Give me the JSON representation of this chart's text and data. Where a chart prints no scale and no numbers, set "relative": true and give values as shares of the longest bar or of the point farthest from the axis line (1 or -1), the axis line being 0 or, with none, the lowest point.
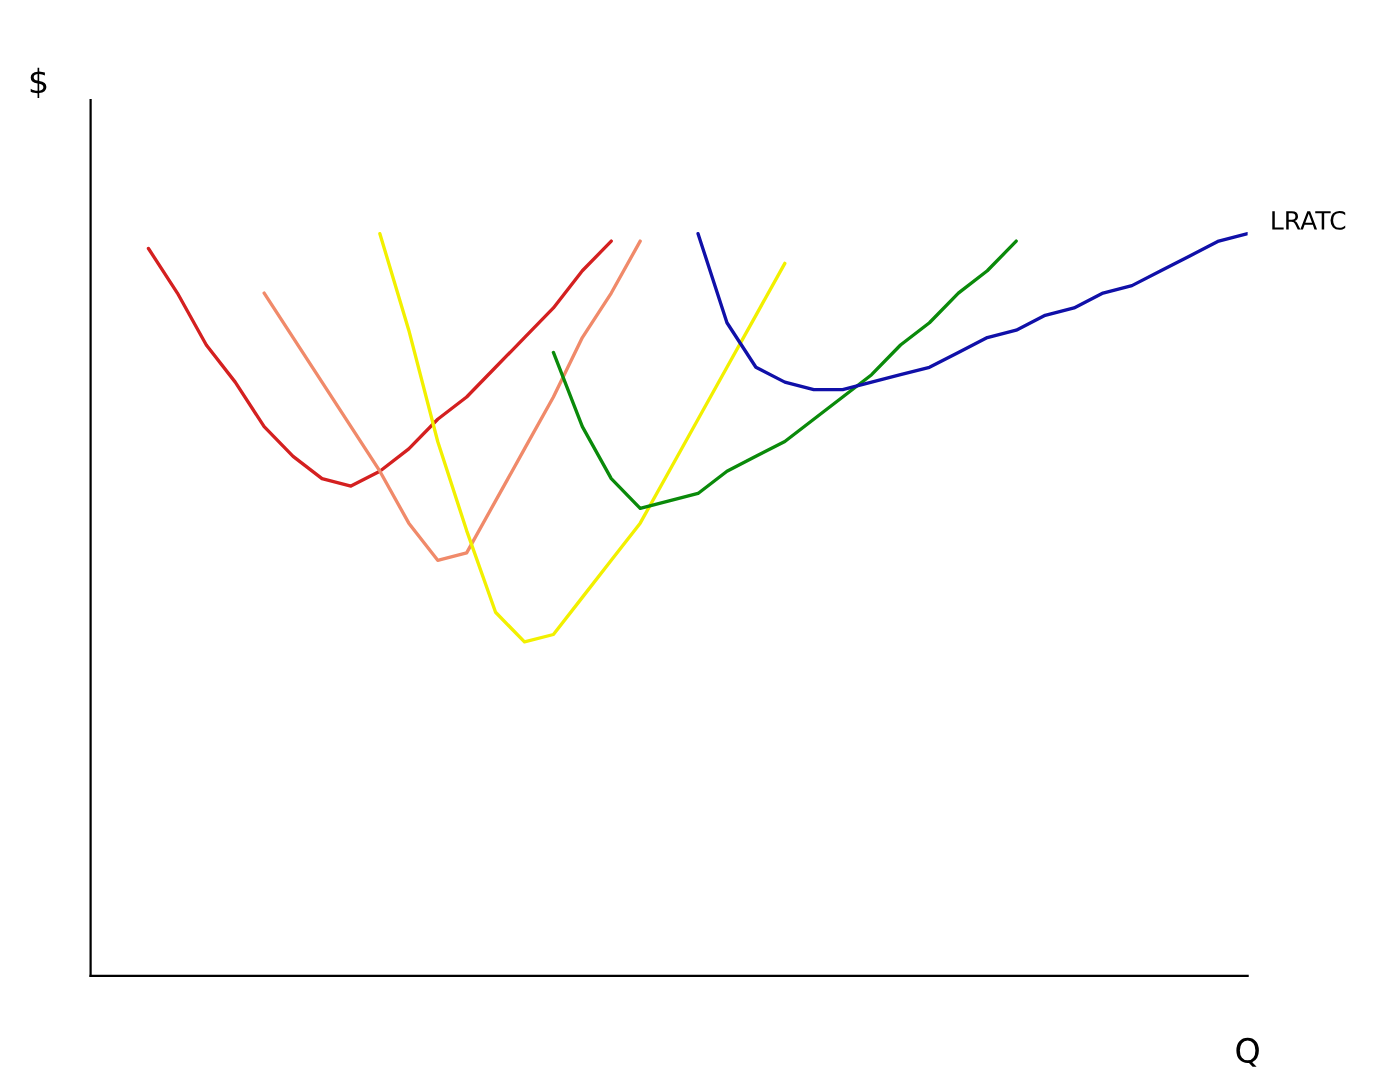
{
  "chart_data": {
    "type": "line",
    "relative": true,
    "ylabel": "$",
    "xlabel": "Q",
    "categories": [
      null,
      null,
      null,
      null,
      null,
      null,
      null,
      null,
      null,
      null,
      null,
      null,
      null,
      null,
      null,
      null,
      null,
      null,
      null,
      null,
      null,
      null,
      null,
      null,
      null,
      null,
      null,
      null,
      null,
      null,
      null,
      null,
      null,
      null,
      null,
      null,
      null,
      null,
      null,
      null,
      null
    ],
    "series": [
      {
        "color": "#d42020",
        "values": [
          null,
          null,
          0.98,
          0.92,
          0.85,
          0.8,
          0.74,
          0.7,
          0.67,
          0.66,
          0.68,
          0.71,
          0.75,
          0.78,
          0.82,
          0.86,
          0.9,
          0.95,
          0.99,
          null,
          null,
          null,
          null,
          null,
          null,
          null,
          null,
          null,
          null,
          null,
          null,
          null,
          null,
          null,
          null,
          null,
          null,
          null,
          null,
          null,
          null
        ]
      },
      {
        "color": "#f08a6a",
        "values": [
          null,
          null,
          null,
          null,
          null,
          null,
          0.92,
          0.86,
          0.8,
          0.74,
          0.68,
          0.61,
          0.56,
          0.57,
          0.64,
          0.71,
          0.78,
          0.86,
          0.92,
          0.99,
          null,
          null,
          null,
          null,
          null,
          null,
          null,
          null,
          null,
          null,
          null,
          null,
          null,
          null,
          null,
          null,
          null,
          null,
          null,
          null,
          null
        ]
      },
      {
        "color": "#f2f000",
        "values": [
          null,
          null,
          null,
          null,
          null,
          null,
          null,
          null,
          null,
          null,
          1.0,
          0.87,
          0.72,
          0.6,
          0.49,
          0.45,
          0.46,
          0.51,
          0.56,
          0.61,
          0.68,
          0.75,
          0.82,
          0.89,
          0.96,
          null,
          null,
          null,
          null,
          null,
          null,
          null,
          null,
          null,
          null,
          null,
          null,
          null,
          null,
          null,
          null
        ]
      },
      {
        "color": "#0a8a0a",
        "values": [
          null,
          null,
          null,
          null,
          null,
          null,
          null,
          null,
          null,
          null,
          null,
          null,
          null,
          null,
          null,
          null,
          0.84,
          0.74,
          0.67,
          0.63,
          0.64,
          0.65,
          0.68,
          0.7,
          0.72,
          0.75,
          0.78,
          0.81,
          0.85,
          0.88,
          0.92,
          0.95,
          0.99,
          null,
          null,
          null,
          null,
          null,
          null,
          null,
          null
        ]
      },
      {
        "name": "LRATC",
        "color": "#1010a8",
        "values": [
          null,
          null,
          null,
          null,
          null,
          null,
          null,
          null,
          null,
          null,
          null,
          null,
          null,
          null,
          null,
          null,
          null,
          null,
          null,
          null,
          null,
          1.0,
          0.88,
          0.82,
          0.8,
          0.79,
          0.79,
          0.8,
          0.81,
          0.82,
          0.84,
          0.86,
          0.87,
          0.89,
          0.9,
          0.92,
          0.93,
          0.95,
          0.97,
          0.99,
          1.0
        ]
      }
    ]
  }
}
